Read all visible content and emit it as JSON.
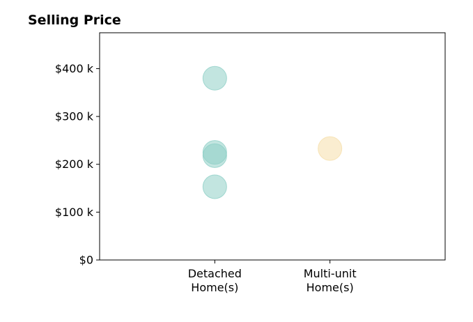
{
  "chart_data": {
    "type": "scatter",
    "title": "Selling Price",
    "xlabel": "",
    "ylabel": "",
    "categories": [
      "Detached\nHome(s)",
      "Multi-unit\nHome(s)"
    ],
    "xlim": [
      -1,
      2
    ],
    "ylim": [
      0,
      475000
    ],
    "yticks": [
      0,
      100000,
      200000,
      300000,
      400000
    ],
    "ytick_labels": [
      "$0",
      "$100 k",
      "$200 k",
      "$300 k",
      "$400 k"
    ],
    "grid": false,
    "series": [
      {
        "category": "Detached\nHome(s)",
        "color": "#8fcfc7",
        "points": [
          {
            "x": 0,
            "y": 380000
          },
          {
            "x": 0,
            "y": 225000
          },
          {
            "x": 0,
            "y": 218000
          },
          {
            "x": 0,
            "y": 153000
          }
        ]
      },
      {
        "category": "Multi-unit\nHome(s)",
        "color": "#f5deaa",
        "points": [
          {
            "x": 1,
            "y": 233000
          }
        ]
      }
    ]
  }
}
